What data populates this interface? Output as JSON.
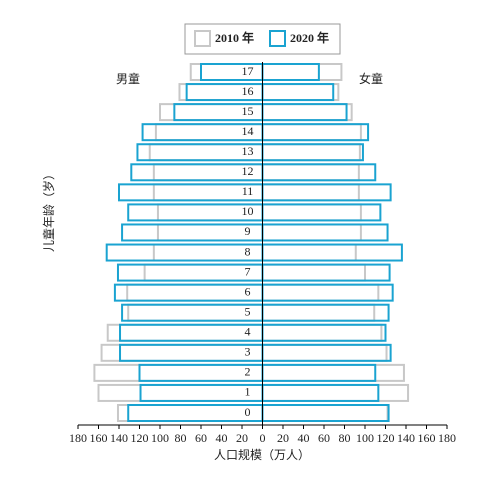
{
  "chart_data": {
    "type": "pyramid",
    "xlabel": "人口规模（万人）",
    "ylabel": "儿童年龄（岁）",
    "left_label": "男童",
    "right_label": "女童",
    "categories": [
      "0",
      "1",
      "2",
      "3",
      "4",
      "5",
      "6",
      "7",
      "8",
      "9",
      "10",
      "11",
      "12",
      "13",
      "14",
      "15",
      "16",
      "17"
    ],
    "xlim": [
      -180,
      180
    ],
    "xticks": [
      {
        "value": -180,
        "label": "180"
      },
      {
        "value": -160,
        "label": "160"
      },
      {
        "value": -140,
        "label": "140"
      },
      {
        "value": -120,
        "label": "120"
      },
      {
        "value": -100,
        "label": "100"
      },
      {
        "value": -80,
        "label": "80"
      },
      {
        "value": -60,
        "label": "60"
      },
      {
        "value": -40,
        "label": "40"
      },
      {
        "value": -20,
        "label": "20"
      },
      0,
      20,
      40,
      60,
      80,
      100,
      120,
      140,
      160,
      180
    ],
    "series": [
      {
        "name": "2010 年",
        "color": "#c8c8c8",
        "male": [
          141,
          160,
          164,
          157,
          151,
          131,
          132,
          115,
          106,
          102,
          102,
          106,
          106,
          110,
          104,
          100,
          81,
          70
        ],
        "female": [
          122,
          142,
          138,
          121,
          116,
          109,
          113,
          100,
          91,
          96,
          96,
          94,
          94,
          95,
          96,
          87,
          74,
          77
        ]
      },
      {
        "name": "2020 年",
        "color": "#1aa3d1",
        "male": [
          131,
          119,
          120,
          139,
          139,
          137,
          144,
          141,
          152,
          137,
          131,
          140,
          128,
          122,
          117,
          86,
          74,
          60
        ],
        "female": [
          123,
          113,
          110,
          125,
          120,
          123,
          127,
          124,
          136,
          122,
          115,
          125,
          110,
          98,
          103,
          82,
          69,
          55
        ]
      }
    ]
  }
}
